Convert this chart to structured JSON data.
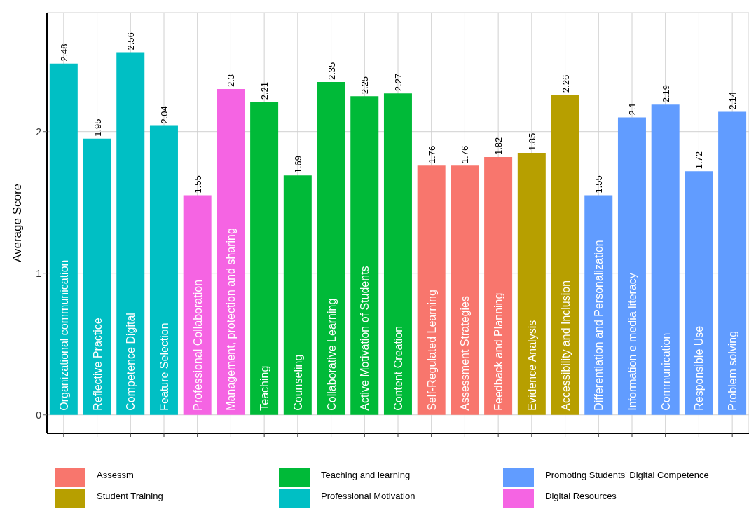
{
  "chart_data": {
    "type": "bar",
    "ylabel": "Average Score",
    "stacked": true,
    "grid": true,
    "legend": "bottom",
    "data_labels": true,
    "ylim": [
      -0.13,
      2.84
    ],
    "yticks": [
      0,
      1,
      2
    ],
    "categories": [
      "Organizational communication",
      "Reflective Practice",
      "Competence Digital",
      "Feature Selection",
      "Professional Collaboration",
      "Management, protection and sharing",
      "Teaching",
      "Counseling",
      "Collaborative Learning",
      "Active Motivation of Students",
      "Content Creation",
      "Self-Regulated Learning",
      "Assessment Strategies",
      "Feedback and Planning",
      "Evidence Analysis",
      "Accessibility and Inclusion",
      "Differentiation and Personalization",
      "Information e media literacy",
      "Communication",
      "Responsible Use",
      "Problem solving"
    ],
    "series": [
      {
        "name": "Assessm",
        "color": "#f8766d",
        "values": [
          null,
          null,
          null,
          null,
          null,
          null,
          null,
          null,
          null,
          null,
          null,
          1.76,
          1.76,
          1.82,
          null,
          null,
          null,
          null,
          null,
          null,
          null
        ]
      },
      {
        "name": "Student Training",
        "color": "#b79f00",
        "values": [
          null,
          null,
          null,
          null,
          null,
          null,
          null,
          null,
          null,
          null,
          null,
          null,
          null,
          null,
          1.85,
          2.26,
          null,
          null,
          null,
          null,
          null
        ]
      },
      {
        "name": "Teaching and learning",
        "color": "#00ba38",
        "values": [
          null,
          null,
          null,
          null,
          null,
          null,
          2.21,
          1.69,
          2.35,
          2.25,
          2.27,
          null,
          null,
          null,
          null,
          null,
          null,
          null,
          null,
          null,
          null
        ]
      },
      {
        "name": "Professional Motivation",
        "color": "#00bfc4",
        "values": [
          2.48,
          1.95,
          2.56,
          2.04,
          null,
          null,
          null,
          null,
          null,
          null,
          null,
          null,
          null,
          null,
          null,
          null,
          null,
          null,
          null,
          null,
          null
        ]
      },
      {
        "name": "Promoting Students' Digital Competence",
        "color": "#619cff",
        "values": [
          null,
          null,
          null,
          null,
          null,
          null,
          null,
          null,
          null,
          null,
          null,
          null,
          null,
          null,
          null,
          null,
          1.55,
          2.1,
          2.19,
          1.72,
          2.14
        ]
      },
      {
        "name": "Digital Resources",
        "color": "#f564e3",
        "values": [
          null,
          null,
          null,
          null,
          1.55,
          2.3,
          null,
          null,
          null,
          null,
          null,
          null,
          null,
          null,
          null,
          null,
          null,
          null,
          null,
          null,
          null
        ]
      }
    ]
  }
}
